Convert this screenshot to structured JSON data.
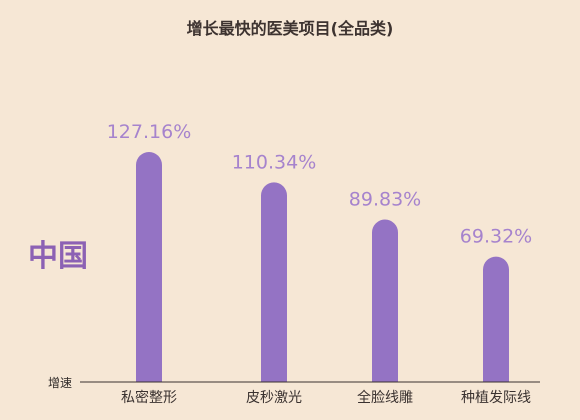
{
  "chart_data": {
    "type": "bar",
    "title": "增长最快的医美项目(全品类)",
    "region_label": "中国",
    "ylabel": "增速",
    "categories": [
      "私密整形",
      "皮秒激光",
      "全脸线雕",
      "种植发际线"
    ],
    "values": [
      127.16,
      110.34,
      89.83,
      69.32
    ],
    "value_labels": [
      "127.16%",
      "110.34%",
      "89.83%",
      "69.32%"
    ],
    "bar_color": "#9473c4",
    "label_color": "#a683cd",
    "region_color": "#8c61b4",
    "ylim": [
      0,
      130
    ],
    "grid": false,
    "legend": "none"
  }
}
